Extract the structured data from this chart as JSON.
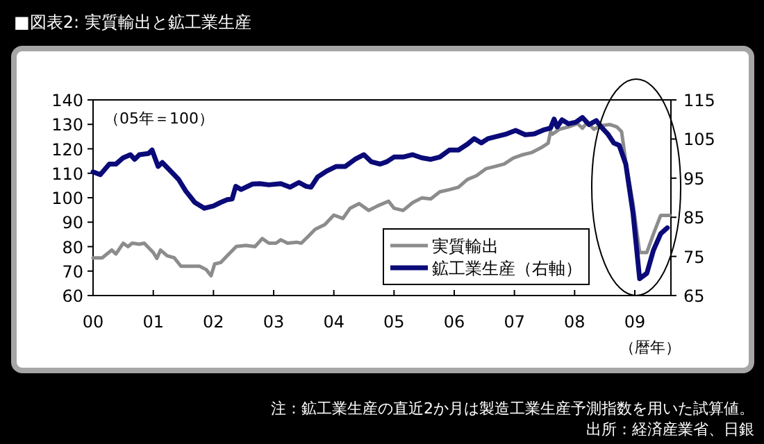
{
  "chart_data": {
    "type": "line",
    "title": "■図表2: 実質輸出と鉱工業生産",
    "xlabel": "（暦年）",
    "annotations": [
      "（05年＝100）",
      "注：鉱工業生産の直近2か月は製造工業生産予測指数を用いた試算値。",
      "出所：経済産業省、日銀"
    ],
    "xlim": [
      2000,
      2009.6
    ],
    "xticks": [
      {
        "value": 2000,
        "label": "00"
      },
      {
        "value": 2001,
        "label": "01"
      },
      {
        "value": 2002,
        "label": "02"
      },
      {
        "value": 2003,
        "label": "03"
      },
      {
        "value": 2004,
        "label": "04"
      },
      {
        "value": 2005,
        "label": "05"
      },
      {
        "value": 2006,
        "label": "06"
      },
      {
        "value": 2007,
        "label": "07"
      },
      {
        "value": 2008,
        "label": "08"
      },
      {
        "value": 2009,
        "label": "09"
      }
    ],
    "ylim": [
      60,
      140
    ],
    "yticks": [
      60,
      70,
      80,
      90,
      100,
      110,
      120,
      130,
      140
    ],
    "y2lim": [
      65,
      115
    ],
    "y2ticks": [
      65,
      75,
      85,
      95,
      105,
      115
    ],
    "legend": "bottom right",
    "series": [
      {
        "name": "実質輸出",
        "color": "#8c8c8c",
        "x": [
          2000,
          2000.15,
          2000.31,
          2000.38,
          2000.5,
          2000.58,
          2000.65,
          2000.77,
          2000.85,
          2001.0,
          2001.06,
          2001.12,
          2001.23,
          2001.35,
          2001.46,
          2001.62,
          2001.77,
          2001.88,
          2001.96,
          2002.02,
          2002.12,
          2002.23,
          2002.38,
          2002.54,
          2002.69,
          2002.81,
          2002.92,
          2003.04,
          2003.12,
          2003.23,
          2003.38,
          2003.46,
          2003.58,
          2003.69,
          2003.85,
          2004.0,
          2004.15,
          2004.27,
          2004.42,
          2004.58,
          2004.73,
          2004.91,
          2005.0,
          2005.15,
          2005.31,
          2005.46,
          2005.61,
          2005.76,
          2005.92,
          2006.07,
          2006.22,
          2006.37,
          2006.53,
          2006.68,
          2006.83,
          2006.98,
          2007.14,
          2007.29,
          2007.44,
          2007.56,
          2007.6,
          2007.63,
          2007.75,
          2007.9,
          2008.05,
          2008.13,
          2008.21,
          2008.32,
          2008.44,
          2008.59,
          2008.7,
          2008.78,
          2008.85,
          2008.97,
          2009.08,
          2009.2,
          2009.31,
          2009.43,
          2009.58
        ],
        "values": [
          75.4,
          75.4,
          78.6,
          77,
          81.4,
          80,
          81.4,
          81,
          81.4,
          77.6,
          75.2,
          78.6,
          76.3,
          75.4,
          72,
          72,
          72,
          70.6,
          68.1,
          72.9,
          73.5,
          76.3,
          80.1,
          80.5,
          80,
          83.3,
          81.4,
          81.4,
          82.8,
          81.4,
          81.8,
          81.4,
          84.3,
          87.1,
          89,
          92.9,
          91.5,
          95.7,
          97.6,
          94.8,
          96.7,
          98.6,
          95.7,
          94.8,
          98,
          99.9,
          99.5,
          102.4,
          103.3,
          104.3,
          107.5,
          109,
          111.9,
          112.8,
          113.8,
          116.2,
          117.6,
          118.5,
          120.4,
          122.3,
          127,
          126,
          128,
          129,
          130.3,
          128.4,
          130.9,
          128,
          129.5,
          129.9,
          129,
          127,
          114.7,
          97.6,
          77.6,
          77.6,
          85.2,
          92.8,
          92.8
        ]
      },
      {
        "name": "鉱工業生産（右軸）",
        "color": "#0a0a78",
        "axis": "y2",
        "x": [
          2000,
          2000.12,
          2000.27,
          2000.38,
          2000.5,
          2000.62,
          2000.69,
          2000.77,
          2000.92,
          2000.98,
          2001.08,
          2001.15,
          2001.27,
          2001.42,
          2001.54,
          2001.69,
          2001.85,
          2002.0,
          2002.12,
          2002.23,
          2002.31,
          2002.37,
          2002.46,
          2002.65,
          2002.77,
          2002.92,
          2003.12,
          2003.27,
          2003.42,
          2003.54,
          2003.62,
          2003.73,
          2003.88,
          2004.04,
          2004.19,
          2004.35,
          2004.5,
          2004.62,
          2004.77,
          2004.88,
          2005.0,
          2005.15,
          2005.31,
          2005.46,
          2005.61,
          2005.76,
          2005.92,
          2006.07,
          2006.22,
          2006.33,
          2006.45,
          2006.56,
          2006.72,
          2006.87,
          2007.02,
          2007.18,
          2007.33,
          2007.48,
          2007.6,
          2007.66,
          2007.71,
          2007.79,
          2007.9,
          2008.02,
          2008.13,
          2008.24,
          2008.36,
          2008.44,
          2008.55,
          2008.65,
          2008.74,
          2008.85,
          2008.97,
          2009.08,
          2009.2,
          2009.31,
          2009.43,
          2009.54
        ],
        "values": [
          96.6,
          95.9,
          98.6,
          98.6,
          100.2,
          101,
          99.8,
          101,
          101.3,
          102.2,
          98,
          99,
          97.1,
          94.7,
          91.7,
          88.8,
          87.3,
          87.9,
          88.8,
          89.5,
          89.7,
          92.9,
          92.1,
          93.5,
          93.6,
          93.3,
          93.6,
          92.7,
          93.9,
          92.9,
          92.7,
          95.3,
          96.8,
          98,
          98,
          99.8,
          101,
          99.2,
          98.6,
          99.2,
          100.4,
          100.4,
          101,
          100.2,
          99.8,
          100.4,
          102.2,
          102.2,
          103.7,
          105.1,
          104,
          105.1,
          105.7,
          106.3,
          107.2,
          106.1,
          106.3,
          107.3,
          107.8,
          110.1,
          108.1,
          109.9,
          108.9,
          109.3,
          110.5,
          108.7,
          109.7,
          108.1,
          106.3,
          104,
          103.4,
          98.6,
          86.1,
          69.3,
          70.7,
          76.6,
          80.8,
          82.3
        ]
      }
    ]
  }
}
